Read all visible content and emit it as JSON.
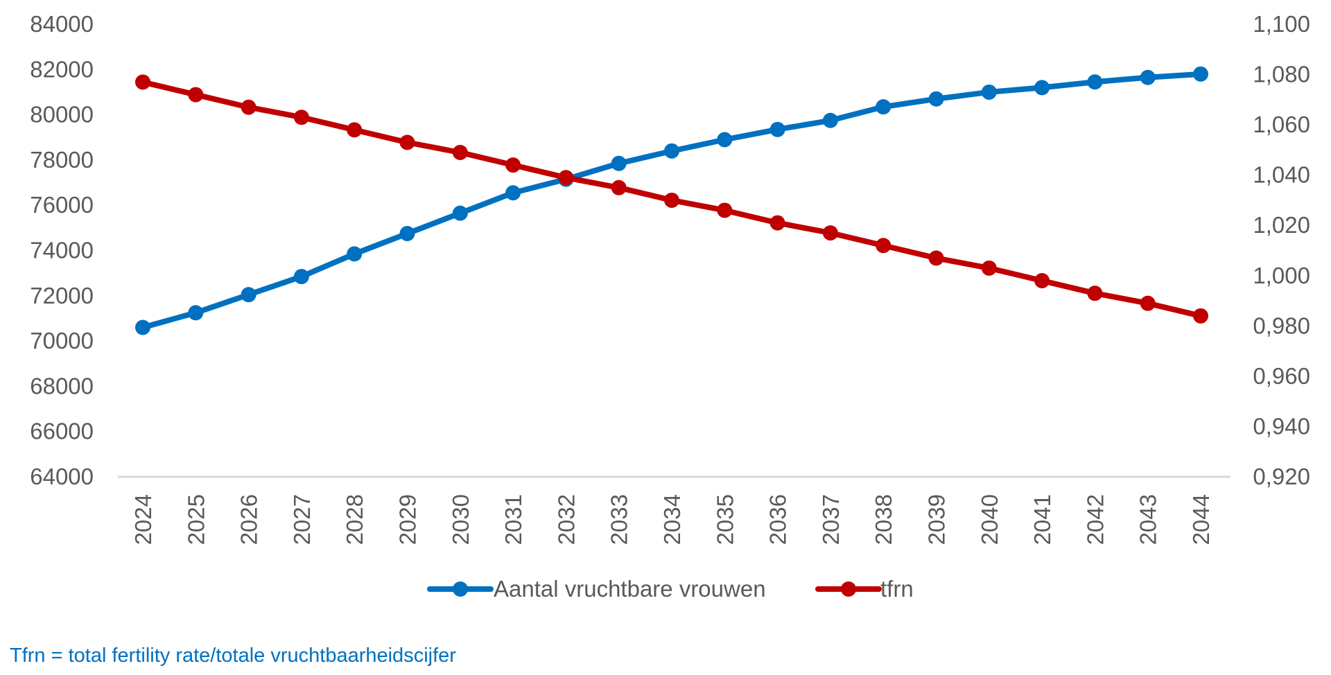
{
  "chart_data": {
    "type": "line",
    "title": "",
    "x": [
      "2024",
      "2025",
      "2026",
      "2027",
      "2028",
      "2029",
      "2030",
      "2031",
      "2032",
      "2033",
      "2034",
      "2035",
      "2036",
      "2037",
      "2038",
      "2039",
      "2040",
      "2041",
      "2042",
      "2043",
      "2044"
    ],
    "y_left": {
      "ticks": [
        "84000",
        "82000",
        "80000",
        "78000",
        "76000",
        "74000",
        "72000",
        "70000",
        "68000",
        "66000",
        "64000"
      ],
      "range": [
        64000,
        84000
      ]
    },
    "y_right": {
      "ticks": [
        "1,100",
        "1,080",
        "1,060",
        "1,040",
        "1,020",
        "1,000",
        "0,980",
        "0,960",
        "0,940",
        "0,920"
      ],
      "range": [
        0.92,
        1.1
      ]
    },
    "series": [
      {
        "name": "Aantal vruchtbare vrouwen",
        "axis": "left",
        "color": "#0070C0",
        "values": [
          70600,
          71250,
          72050,
          72850,
          73850,
          74750,
          75650,
          76550,
          77150,
          77850,
          78400,
          78900,
          79350,
          79750,
          80350,
          80700,
          81000,
          81200,
          81450,
          81650,
          81800
        ]
      },
      {
        "name": "tfrn",
        "axis": "right",
        "color": "#C00000",
        "values": [
          1.077,
          1.072,
          1.067,
          1.063,
          1.058,
          1.053,
          1.049,
          1.044,
          1.039,
          1.035,
          1.03,
          1.026,
          1.021,
          1.017,
          1.012,
          1.007,
          1.003,
          0.998,
          0.993,
          0.989,
          0.984
        ]
      }
    ],
    "grid": false,
    "legend_position": "bottom"
  },
  "footnote": {
    "text": "Tfrn = total fertility rate/totale vruchtbaarheidscijfer",
    "color": "#0070C0"
  },
  "colors": {
    "axis_line": "#D9D9D9",
    "tick_text": "#595959"
  }
}
